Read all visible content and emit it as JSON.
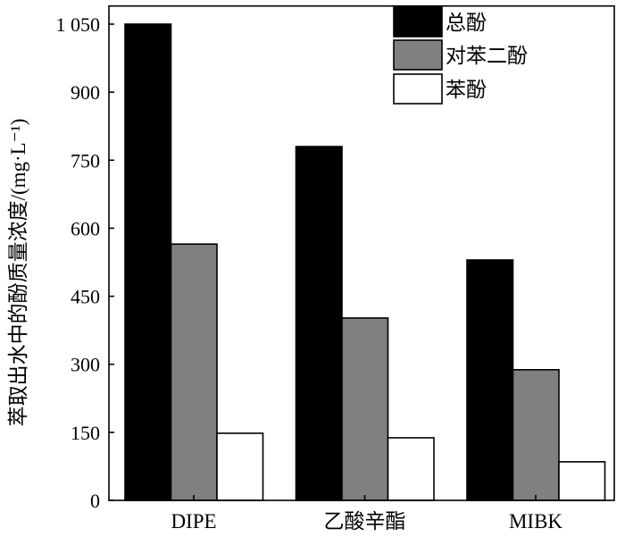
{
  "chart_data": {
    "type": "bar",
    "categories": [
      "DIPE",
      "乙酸辛酯",
      "MIBK"
    ],
    "series": [
      {
        "name": "总酚",
        "values": [
          1050,
          780,
          530
        ],
        "color": "#000000"
      },
      {
        "name": "对苯二酚",
        "values": [
          565,
          402,
          288
        ],
        "color": "#808080"
      },
      {
        "name": "苯酚",
        "values": [
          148,
          138,
          85
        ],
        "color": "#ffffff"
      }
    ],
    "ylabel": "萃取出水中的酚质量浓度/(mg·L⁻¹)",
    "ylim": [
      0,
      1090
    ],
    "yticks": [
      0,
      150,
      300,
      450,
      600,
      750,
      900,
      1050
    ],
    "ytick_labels": [
      "0",
      "150",
      "300",
      "450",
      "600",
      "750",
      "900",
      "1 050"
    ],
    "legend_position": "top-right",
    "grid": false
  }
}
